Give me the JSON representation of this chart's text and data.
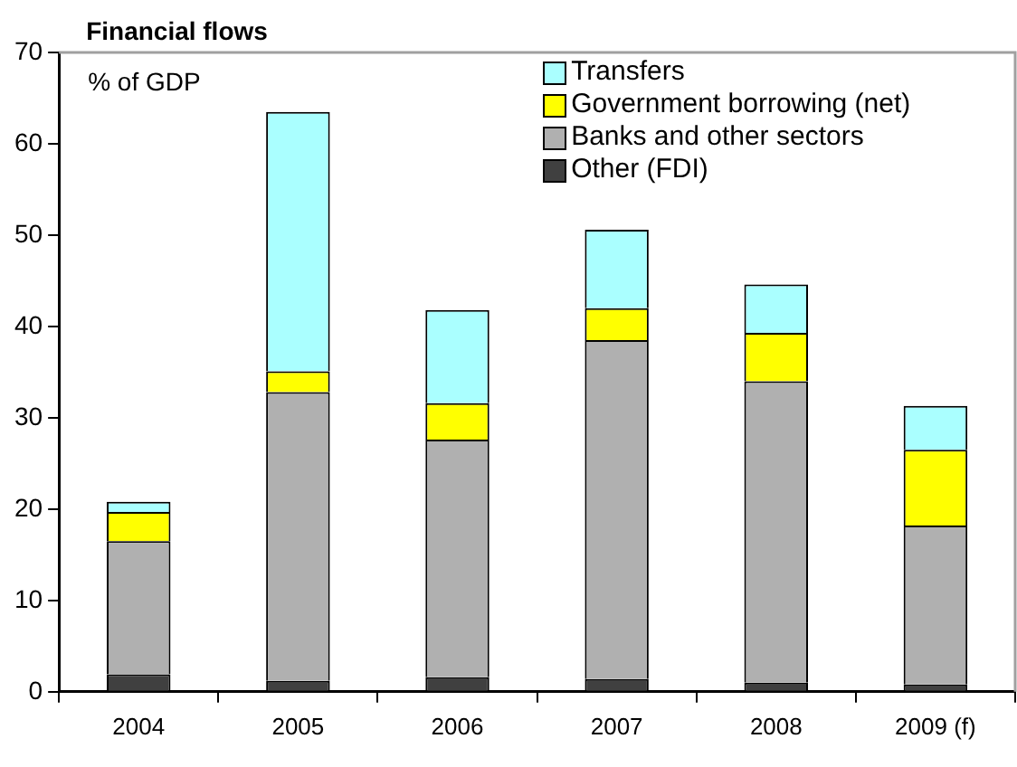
{
  "chart_data": {
    "type": "bar",
    "title": "Financial flows",
    "ylabel": "% of GDP",
    "stacked": true,
    "categories": [
      "2004",
      "2005",
      "2006",
      "2007",
      "2008",
      "2009 (f)"
    ],
    "series": [
      {
        "name": "Other (FDI)",
        "color": "#404040",
        "values": [
          1.9,
          1.2,
          1.6,
          1.4,
          1.0,
          0.8
        ]
      },
      {
        "name": "Banks and other sectors",
        "color": "#b0b0b0",
        "values": [
          14.6,
          31.6,
          26.0,
          37.1,
          33.0,
          17.4
        ]
      },
      {
        "name": "Government borrowing (net)",
        "color": "#ffff00",
        "values": [
          3.2,
          2.3,
          4.0,
          3.5,
          5.3,
          8.3
        ]
      },
      {
        "name": "Transfers",
        "color": "#aaffff",
        "values": [
          1.1,
          28.4,
          10.2,
          8.6,
          5.3,
          4.8
        ]
      }
    ],
    "ylim": [
      0,
      70
    ],
    "yticks": [
      0,
      10,
      20,
      30,
      40,
      50,
      60,
      70
    ],
    "grid": false,
    "legend": "top right"
  }
}
